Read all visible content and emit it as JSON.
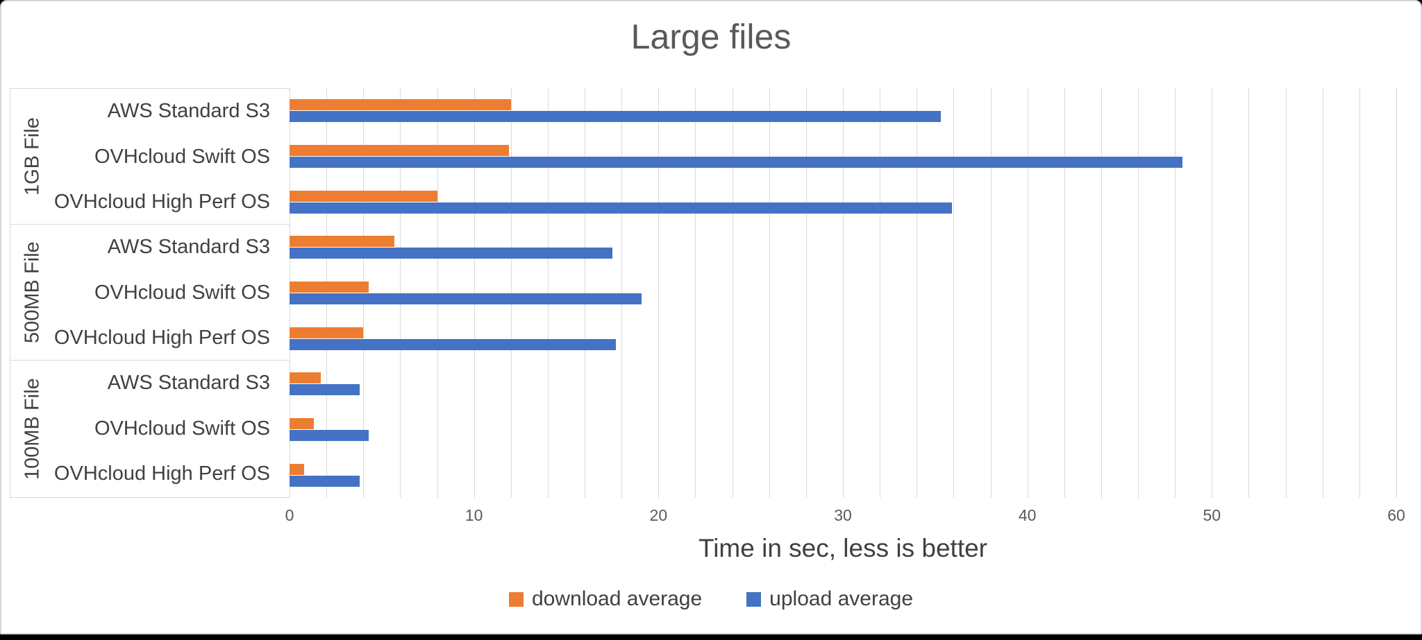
{
  "window": {
    "background_color": "#000000",
    "card_background": "#ffffff",
    "card_border_color": "#d6d6d6"
  },
  "chart_data": {
    "type": "bar",
    "orientation": "horizontal",
    "title": "Large files",
    "xlabel": "Time in sec, less is better",
    "xlim": [
      0,
      60
    ],
    "x_ticks": [
      0,
      10,
      20,
      30,
      40,
      50,
      60
    ],
    "minor_gridline_step": 2,
    "gridline_color": "#d9d9d9",
    "legend_position": "bottom",
    "series": [
      {
        "key": "download",
        "name": "download average",
        "color": "#ED7D31"
      },
      {
        "key": "upload",
        "name": "upload average",
        "color": "#4472C4"
      }
    ],
    "groups": [
      {
        "label": "1GB File",
        "rows": [
          {
            "label": "AWS Standard S3",
            "download": 12.0,
            "upload": 35.3
          },
          {
            "label": "OVHcloud Swift OS",
            "download": 11.9,
            "upload": 48.4
          },
          {
            "label": "OVHcloud High Perf OS",
            "download": 8.0,
            "upload": 35.9
          }
        ]
      },
      {
        "label": "500MB File",
        "rows": [
          {
            "label": "AWS Standard S3",
            "download": 5.7,
            "upload": 17.5
          },
          {
            "label": "OVHcloud Swift OS",
            "download": 4.3,
            "upload": 19.1
          },
          {
            "label": "OVHcloud High Perf OS",
            "download": 4.0,
            "upload": 17.7
          }
        ]
      },
      {
        "label": "100MB File",
        "rows": [
          {
            "label": "AWS Standard S3",
            "download": 1.7,
            "upload": 3.8
          },
          {
            "label": "OVHcloud Swift OS",
            "download": 1.3,
            "upload": 4.3
          },
          {
            "label": "OVHcloud High Perf OS",
            "download": 0.8,
            "upload": 3.8
          }
        ]
      }
    ]
  }
}
